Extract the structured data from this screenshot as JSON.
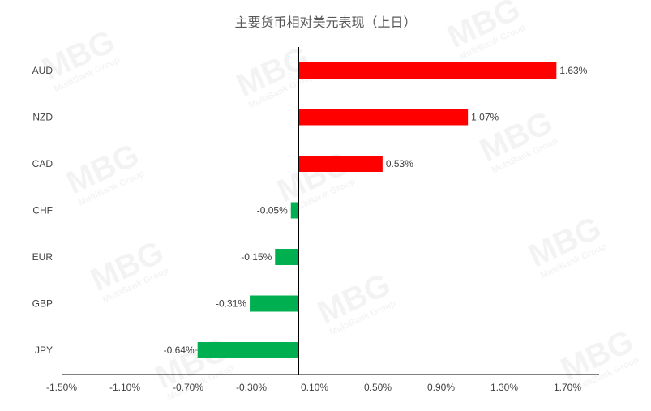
{
  "chart_data": {
    "type": "bar",
    "orientation": "horizontal",
    "title": "主要货币相对美元表现（上日）",
    "categories": [
      "AUD",
      "NZD",
      "CAD",
      "CHF",
      "EUR",
      "GBP",
      "JPY"
    ],
    "values": [
      1.63,
      1.07,
      0.53,
      -0.05,
      -0.15,
      -0.31,
      -0.64
    ],
    "value_labels": [
      "1.63%",
      "1.07%",
      "0.53%",
      "-0.05%",
      "-0.15%",
      "-0.31%",
      "-0.64%"
    ],
    "xlim": [
      -1.5,
      1.9
    ],
    "x_ticks": [
      -1.5,
      -1.1,
      -0.7,
      -0.3,
      0.1,
      0.5,
      0.9,
      1.3,
      1.7
    ],
    "x_tick_labels": [
      "-1.50%",
      "-1.10%",
      "-0.70%",
      "-0.30%",
      "0.10%",
      "0.50%",
      "0.90%",
      "1.30%",
      "1.70%"
    ],
    "grid": false,
    "colors": {
      "positive": "#ff0000",
      "negative": "#00b050",
      "axis": "#000000",
      "text": "#404040"
    }
  },
  "watermark": {
    "brand": "MBG",
    "sub": "MultiBank Group"
  }
}
